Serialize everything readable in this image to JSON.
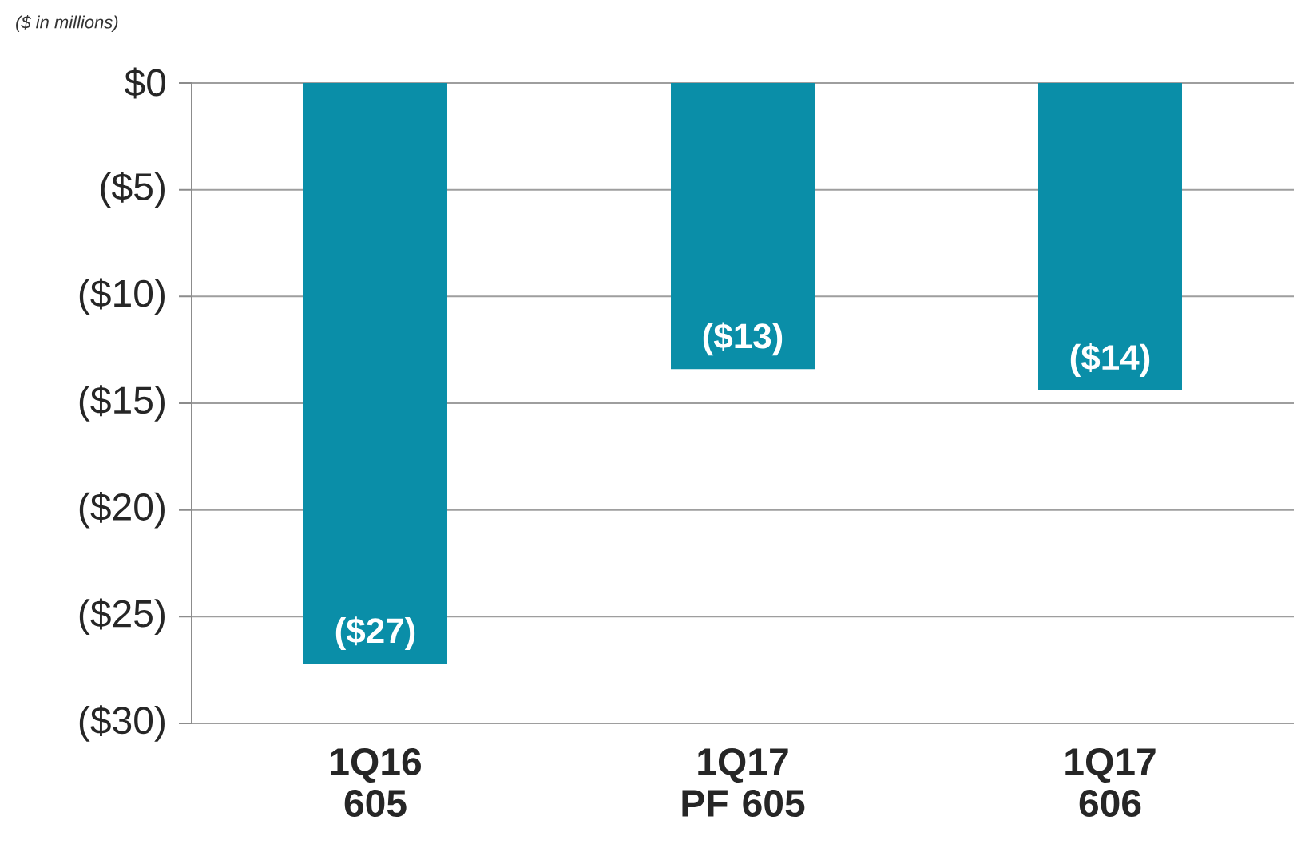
{
  "chart_data": {
    "type": "bar",
    "annotations": [
      "($ in millions)"
    ],
    "categories": [
      "1Q16 605",
      "1Q17 PF 605",
      "1Q17 606"
    ],
    "values": [
      -27.2,
      -13.4,
      -14.4
    ],
    "value_labels": [
      "($27)",
      "($13)",
      "($14)"
    ],
    "color": "#0a8ea8",
    "ylim": [
      -30,
      0
    ],
    "yticks": [
      {
        "value": -30,
        "label": "($30)"
      },
      {
        "value": -25,
        "label": "($25)"
      },
      {
        "value": -20,
        "label": "($20)"
      },
      {
        "value": -15,
        "label": "($15)"
      },
      {
        "value": -10,
        "label": "($10)"
      },
      {
        "value": -5,
        "label": "($5)"
      },
      {
        "value": 0,
        "label": "$0"
      }
    ],
    "grid": "y"
  }
}
